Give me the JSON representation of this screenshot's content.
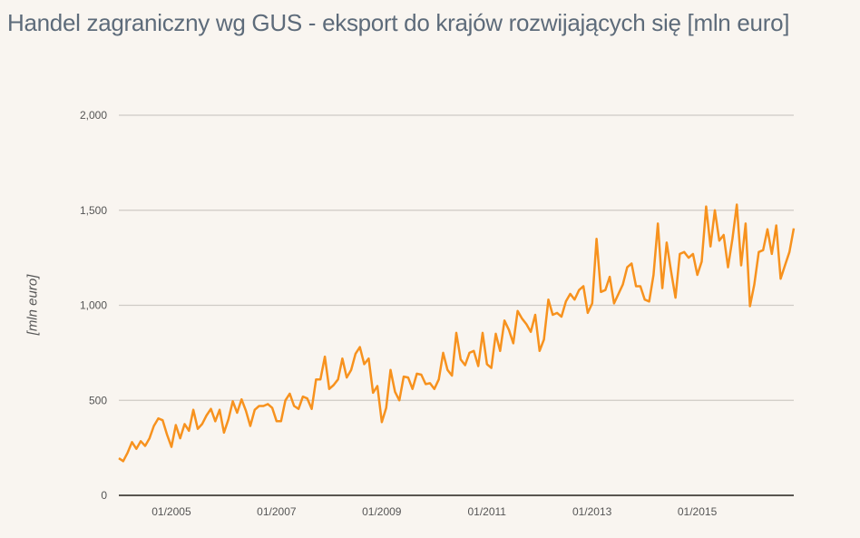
{
  "title": "Handel zagraniczny wg GUS - eksport do krajów rozwijających się [mln euro]",
  "colors": {
    "background": "#f9f5f0",
    "line": "#f7921e",
    "grid": "#cfcac5",
    "axis": "#5a5651",
    "title": "#5d6b7a"
  },
  "chart_data": {
    "type": "line",
    "title": "Handel zagraniczny wg GUS - eksport do krajów rozwijających się [mln euro]",
    "xlabel": "",
    "ylabel": "[mln euro]",
    "ylim": [
      0,
      2000
    ],
    "yticks": [
      0,
      500,
      1000,
      1500,
      2000
    ],
    "ytick_labels": [
      "0",
      "500",
      "1,000",
      "1,500",
      "2,000"
    ],
    "xtick_labels": [
      "01/2005",
      "01/2007",
      "01/2009",
      "01/2011",
      "01/2013",
      "01/2015"
    ],
    "grid": true,
    "legend": null,
    "x_start": "01/2004",
    "x_step": "month",
    "series": [
      {
        "name": "eksport do krajów rozwijających się",
        "values": [
          195,
          180,
          225,
          280,
          245,
          285,
          260,
          300,
          365,
          405,
          395,
          320,
          255,
          370,
          300,
          375,
          340,
          450,
          350,
          375,
          420,
          455,
          390,
          450,
          330,
          400,
          495,
          435,
          505,
          445,
          365,
          450,
          470,
          470,
          480,
          460,
          390,
          390,
          500,
          535,
          470,
          455,
          520,
          510,
          455,
          610,
          610,
          730,
          560,
          580,
          610,
          720,
          620,
          660,
          745,
          780,
          690,
          720,
          540,
          575,
          385,
          460,
          660,
          545,
          500,
          625,
          620,
          560,
          640,
          635,
          585,
          590,
          560,
          610,
          750,
          660,
          630,
          855,
          715,
          685,
          750,
          760,
          680,
          855,
          690,
          670,
          850,
          760,
          920,
          870,
          800,
          970,
          930,
          900,
          860,
          950,
          760,
          820,
          1030,
          950,
          960,
          940,
          1020,
          1060,
          1030,
          1080,
          1100,
          960,
          1010,
          1350,
          1070,
          1080,
          1150,
          1010,
          1060,
          1110,
          1200,
          1220,
          1100,
          1100,
          1030,
          1020,
          1160,
          1430,
          1090,
          1330,
          1180,
          1040,
          1270,
          1280,
          1250,
          1270,
          1160,
          1230,
          1520,
          1310,
          1500,
          1340,
          1370,
          1200,
          1350,
          1530,
          1210,
          1430,
          995,
          1110,
          1280,
          1290,
          1400,
          1270,
          1420,
          1140,
          1210,
          1280,
          1405
        ]
      }
    ]
  }
}
